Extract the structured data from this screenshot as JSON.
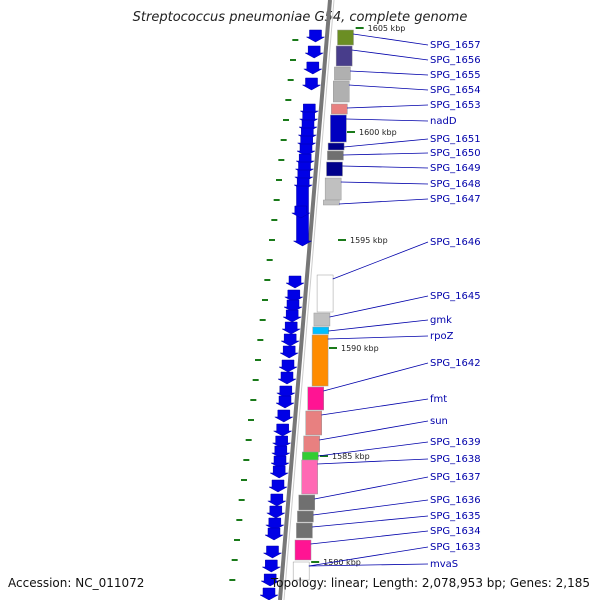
{
  "title": "Streptococcus pneumoniae G54, complete genome",
  "accession": "Accession: NC_011072",
  "summary": "Topology: linear; Length: 2,078,953 bp; Genes: 2,185",
  "colors": {
    "cds": "#0000e6",
    "label": "#0000aa",
    "tick": "#1a7a1a",
    "backbone": "#888888"
  },
  "scale_ticks": [
    "1605 kbp",
    "1600 kbp",
    "1595 kbp",
    "1590 kbp",
    "1585 kbp",
    "1580 kbp"
  ],
  "genes": [
    {
      "name": "SPG_1657",
      "color": "#6b8e23"
    },
    {
      "name": "SPG_1656",
      "color": "#483d8b"
    },
    {
      "name": "SPG_1655",
      "color": "#b0b0b0"
    },
    {
      "name": "SPG_1654",
      "color": "#b0b0b0"
    },
    {
      "name": "SPG_1653",
      "color": "#e88080"
    },
    {
      "name": "nadD",
      "color": "#0000c0"
    },
    {
      "name": "SPG_1651",
      "color": "#00008b"
    },
    {
      "name": "SPG_1650",
      "color": "#707070"
    },
    {
      "name": "SPG_1649",
      "color": "#00008b"
    },
    {
      "name": "SPG_1648",
      "color": "#c0c0c0"
    },
    {
      "name": "SPG_1647",
      "color": "#c0c0c0"
    },
    {
      "name": "SPG_1646",
      "color": "#ffffff"
    },
    {
      "name": "SPG_1645",
      "color": "#c0c0c0"
    },
    {
      "name": "gmk",
      "color": "#00bfff"
    },
    {
      "name": "rpoZ",
      "color": "#ff8c00"
    },
    {
      "name": "SPG_1642",
      "color": "#ff1493"
    },
    {
      "name": "fmt",
      "color": "#e88080"
    },
    {
      "name": "sun",
      "color": "#e88080"
    },
    {
      "name": "SPG_1639",
      "color": "#32cd32"
    },
    {
      "name": "SPG_1638",
      "color": "#ff69b4"
    },
    {
      "name": "SPG_1637",
      "color": "#707070"
    },
    {
      "name": "SPG_1636",
      "color": "#707070"
    },
    {
      "name": "SPG_1635",
      "color": "#707070"
    },
    {
      "name": "SPG_1634",
      "color": "#ff1493"
    },
    {
      "name": "SPG_1633",
      "color": "#ffffff"
    },
    {
      "name": "mvaS",
      "color": "#ffffff"
    }
  ]
}
